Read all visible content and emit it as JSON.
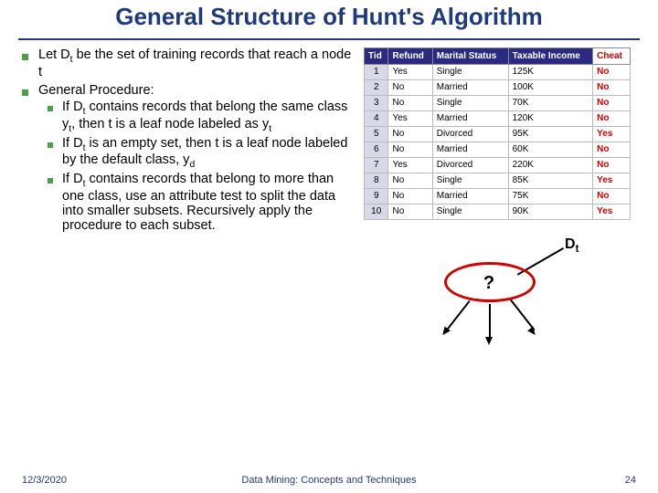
{
  "title": "General Structure of Hunt's Algorithm",
  "bullets": {
    "b1": "Let D",
    "b1_sub": "t",
    "b1_rest": " be the set of training records that reach a node t",
    "b2": "General Procedure:",
    "b2a_1": "If D",
    "b2a_sub1": "t",
    "b2a_2": " contains records that belong the same class y",
    "b2a_sub2": "t",
    "b2a_3": ", then t is a leaf node labeled as y",
    "b2a_sub3": "t",
    "b2b_1": "If D",
    "b2b_sub": "t",
    "b2b_2": " is an empty set, then t is a leaf node labeled by the default class, y",
    "b2b_sub2": "d",
    "b2c_1": "If D",
    "b2c_sub": "t",
    "b2c_2": " contains records that belong to more than one class, use an attribute test to split the data into smaller subsets. Recursively apply the procedure to each subset."
  },
  "table": {
    "columns": [
      "Tid",
      "Refund",
      "Marital Status",
      "Taxable Income",
      "Cheat"
    ],
    "rows": [
      [
        "1",
        "Yes",
        "Single",
        "125K",
        "No"
      ],
      [
        "2",
        "No",
        "Married",
        "100K",
        "No"
      ],
      [
        "3",
        "No",
        "Single",
        "70K",
        "No"
      ],
      [
        "4",
        "Yes",
        "Married",
        "120K",
        "No"
      ],
      [
        "5",
        "No",
        "Divorced",
        "95K",
        "Yes"
      ],
      [
        "6",
        "No",
        "Married",
        "60K",
        "No"
      ],
      [
        "7",
        "Yes",
        "Divorced",
        "220K",
        "No"
      ],
      [
        "8",
        "No",
        "Single",
        "85K",
        "Yes"
      ],
      [
        "9",
        "No",
        "Married",
        "75K",
        "No"
      ],
      [
        "10",
        "No",
        "Single",
        "90K",
        "Yes"
      ]
    ],
    "header_bg": "#2a2a80",
    "cheat_color": "#d00000"
  },
  "diagram": {
    "dt_label_1": "D",
    "dt_label_sub": "t",
    "question_mark": "?",
    "ellipse_color": "#d00000"
  },
  "footer": {
    "date": "12/3/2020",
    "center": "Data Mining: Concepts and Techniques",
    "page": "24"
  }
}
